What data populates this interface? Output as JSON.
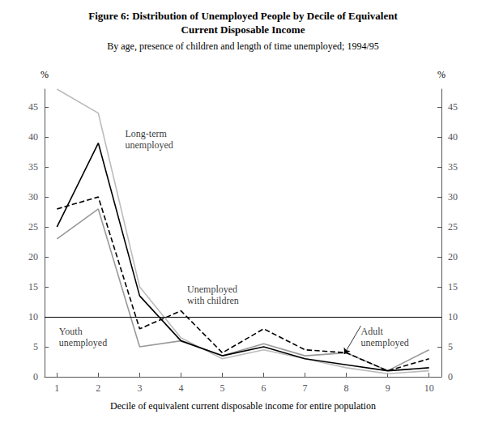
{
  "chart_data": {
    "type": "line",
    "title": "Figure 6: Distribution of Unemployed People by Decile of Equivalent\nCurrent Disposable Income",
    "subtitle": "By age, presence of children and length of time unemployed; 1994/95",
    "xlabel": "Decile of equivalent current disposable income for entire population",
    "ylabel": "%",
    "y2label": "%",
    "x": [
      1,
      2,
      3,
      4,
      5,
      6,
      7,
      8,
      9,
      10
    ],
    "series": [
      {
        "name": "Youth\nunemployed",
        "color": "#bbbbbb",
        "line_style": "solid",
        "values": [
          48.0,
          44.0,
          15.0,
          6.5,
          3.0,
          4.5,
          3.0,
          1.5,
          0.5,
          1.0
        ]
      },
      {
        "name": "Adult\nunemployed",
        "color": "#999999",
        "line_style": "solid",
        "values": [
          23.0,
          28.0,
          5.0,
          6.0,
          3.5,
          5.5,
          3.5,
          4.0,
          1.0,
          4.5
        ]
      },
      {
        "name": "Long-term\nunemployed",
        "color": "#000000",
        "line_style": "solid",
        "values": [
          25.0,
          39.0,
          13.5,
          6.0,
          3.5,
          5.0,
          3.0,
          2.0,
          1.0,
          1.5
        ]
      },
      {
        "name": "Unemployed\nwith children",
        "color": "#000000",
        "line_style": "dashed",
        "values": [
          28.0,
          30.0,
          8.0,
          11.0,
          4.0,
          8.0,
          4.5,
          4.0,
          1.0,
          3.0
        ]
      }
    ],
    "reference_lines": [
      {
        "y": 10,
        "color": "#000000"
      }
    ],
    "xlim": [
      0.7,
      10.3
    ],
    "xticks": [
      1,
      2,
      3,
      4,
      5,
      6,
      7,
      8,
      9,
      10
    ],
    "ylim": [
      0,
      48
    ],
    "yticks": [
      0,
      5,
      10,
      15,
      20,
      25,
      30,
      35,
      40,
      45
    ],
    "y2lim": [
      0,
      48
    ],
    "y2ticks": [
      0,
      5,
      10,
      15,
      20,
      25,
      30,
      35,
      40,
      45
    ],
    "grid": false,
    "annotations": [
      {
        "text": "Long-term\nunemployed",
        "x": 2.65,
        "y": 41.5
      },
      {
        "text": "Unemployed\nwith children",
        "x": 4.15,
        "y": 15.5
      },
      {
        "text": "Youth\nunemployed",
        "x": 1.05,
        "y": 8.5
      },
      {
        "text": "Adult\nunemployed",
        "x": 8.35,
        "y": 8.5,
        "arrow_to": [
          7.95,
          3.8
        ]
      }
    ]
  }
}
